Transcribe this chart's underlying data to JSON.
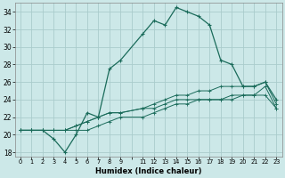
{
  "title": "",
  "xlabel": "Humidex (Indice chaleur)",
  "bg_color": "#cce8e8",
  "grid_color": "#aacccc",
  "line_color": "#1a6b5a",
  "xlim": [
    -0.5,
    23.5
  ],
  "ylim": [
    17.5,
    35.0
  ],
  "yticks": [
    18,
    20,
    22,
    24,
    26,
    28,
    30,
    32,
    34
  ],
  "xtick_positions": [
    0,
    1,
    2,
    3,
    4,
    5,
    6,
    7,
    8,
    9,
    10,
    11,
    12,
    13,
    14,
    15,
    16,
    17,
    18,
    19,
    20,
    21,
    22,
    23
  ],
  "xtick_labels": [
    "0",
    "1",
    "2",
    "3",
    "4",
    "5",
    "6",
    "7",
    "8",
    "9",
    "",
    "11",
    "12",
    "13",
    "14",
    "15",
    "16",
    "17",
    "18",
    "19",
    "20",
    "21",
    "22",
    "23"
  ],
  "line1_x": [
    0,
    1,
    2,
    3,
    4,
    5,
    6,
    7,
    8,
    9,
    11,
    12,
    13,
    14,
    15,
    16,
    17,
    18,
    19,
    20,
    21,
    22,
    23
  ],
  "line1_y": [
    20.5,
    20.5,
    20.5,
    19.5,
    18.0,
    20.0,
    22.5,
    22.0,
    27.5,
    28.5,
    31.5,
    33.0,
    32.5,
    34.5,
    34.0,
    33.5,
    32.5,
    28.5,
    28.0,
    25.5,
    25.5,
    26.0,
    24.0
  ],
  "line2_x": [
    0,
    1,
    2,
    3,
    4,
    5,
    6,
    7,
    8,
    9,
    11,
    12,
    13,
    14,
    15,
    16,
    17,
    18,
    19,
    20,
    21,
    22,
    23
  ],
  "line2_y": [
    20.5,
    20.5,
    20.5,
    20.5,
    20.5,
    21.0,
    21.5,
    22.0,
    22.5,
    22.5,
    23.0,
    23.5,
    24.0,
    24.5,
    24.5,
    25.0,
    25.0,
    25.5,
    25.5,
    25.5,
    25.5,
    26.0,
    23.5
  ],
  "line3_x": [
    0,
    1,
    2,
    3,
    4,
    5,
    6,
    7,
    8,
    9,
    11,
    12,
    13,
    14,
    15,
    16,
    17,
    18,
    19,
    20,
    21,
    22,
    23
  ],
  "line3_y": [
    20.5,
    20.5,
    20.5,
    20.5,
    20.5,
    21.0,
    21.5,
    22.0,
    22.5,
    22.5,
    23.0,
    23.0,
    23.5,
    24.0,
    24.0,
    24.0,
    24.0,
    24.0,
    24.5,
    24.5,
    24.5,
    25.5,
    23.0
  ],
  "line4_x": [
    0,
    1,
    2,
    3,
    4,
    5,
    6,
    7,
    8,
    9,
    11,
    12,
    13,
    14,
    15,
    16,
    17,
    18,
    19,
    20,
    21,
    22,
    23
  ],
  "line4_y": [
    20.5,
    20.5,
    20.5,
    20.5,
    20.5,
    20.5,
    20.5,
    21.0,
    21.5,
    22.0,
    22.0,
    22.5,
    23.0,
    23.5,
    23.5,
    24.0,
    24.0,
    24.0,
    24.0,
    24.5,
    24.5,
    24.5,
    23.0
  ]
}
